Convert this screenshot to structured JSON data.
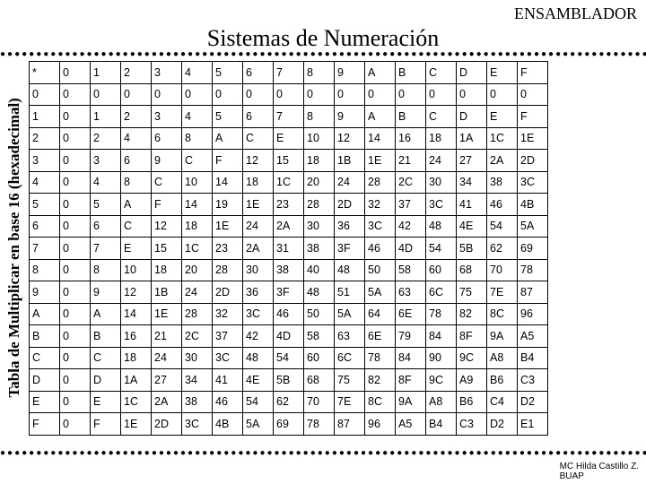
{
  "header": "ENSAMBLADOR",
  "title": "Sistemas de Numeración",
  "vert_label": "Tabla de Multiplicar en base 16 (hexadecimal)",
  "footer_line1": "MC Hilda Castillo Z.",
  "footer_line2": "BUAP",
  "table": {
    "columns": [
      "*",
      "0",
      "1",
      "2",
      "3",
      "4",
      "5",
      "6",
      "7",
      "8",
      "9",
      "A",
      "B",
      "C",
      "D",
      "E",
      "F"
    ],
    "rows": [
      [
        "0",
        "0",
        "0",
        "0",
        "0",
        "0",
        "0",
        "0",
        "0",
        "0",
        "0",
        "0",
        "0",
        "0",
        "0",
        "0",
        "0"
      ],
      [
        "1",
        "0",
        "1",
        "2",
        "3",
        "4",
        "5",
        "6",
        "7",
        "8",
        "9",
        "A",
        "B",
        "C",
        "D",
        "E",
        "F"
      ],
      [
        "2",
        "0",
        "2",
        "4",
        "6",
        "8",
        "A",
        "C",
        "E",
        "10",
        "12",
        "14",
        "16",
        "18",
        "1A",
        "1C",
        "1E"
      ],
      [
        "3",
        "0",
        "3",
        "6",
        "9",
        "C",
        "F",
        "12",
        "15",
        "18",
        "1B",
        "1E",
        "21",
        "24",
        "27",
        "2A",
        "2D"
      ],
      [
        "4",
        "0",
        "4",
        "8",
        "C",
        "10",
        "14",
        "18",
        "1C",
        "20",
        "24",
        "28",
        "2C",
        "30",
        "34",
        "38",
        "3C"
      ],
      [
        "5",
        "0",
        "5",
        "A",
        "F",
        "14",
        "19",
        "1E",
        "23",
        "28",
        "2D",
        "32",
        "37",
        "3C",
        "41",
        "46",
        "4B"
      ],
      [
        "6",
        "0",
        "6",
        "C",
        "12",
        "18",
        "1E",
        "24",
        "2A",
        "30",
        "36",
        "3C",
        "42",
        "48",
        "4E",
        "54",
        "5A"
      ],
      [
        "7",
        "0",
        "7",
        "E",
        "15",
        "1C",
        "23",
        "2A",
        "31",
        "38",
        "3F",
        "46",
        "4D",
        "54",
        "5B",
        "62",
        "69"
      ],
      [
        "8",
        "0",
        "8",
        "10",
        "18",
        "20",
        "28",
        "30",
        "38",
        "40",
        "48",
        "50",
        "58",
        "60",
        "68",
        "70",
        "78"
      ],
      [
        "9",
        "0",
        "9",
        "12",
        "1B",
        "24",
        "2D",
        "36",
        "3F",
        "48",
        "51",
        "5A",
        "63",
        "6C",
        "75",
        "7E",
        "87"
      ],
      [
        "A",
        "0",
        "A",
        "14",
        "1E",
        "28",
        "32",
        "3C",
        "46",
        "50",
        "5A",
        "64",
        "6E",
        "78",
        "82",
        "8C",
        "96"
      ],
      [
        "B",
        "0",
        "B",
        "16",
        "21",
        "2C",
        "37",
        "42",
        "4D",
        "58",
        "63",
        "6E",
        "79",
        "84",
        "8F",
        "9A",
        "A5"
      ],
      [
        "C",
        "0",
        "C",
        "18",
        "24",
        "30",
        "3C",
        "48",
        "54",
        "60",
        "6C",
        "78",
        "84",
        "90",
        "9C",
        "A8",
        "B4"
      ],
      [
        "D",
        "0",
        "D",
        "1A",
        "27",
        "34",
        "41",
        "4E",
        "5B",
        "68",
        "75",
        "82",
        "8F",
        "9C",
        "A9",
        "B6",
        "C3"
      ],
      [
        "E",
        "0",
        "E",
        "1C",
        "2A",
        "38",
        "46",
        "54",
        "62",
        "70",
        "7E",
        "8C",
        "9A",
        "A8",
        "B6",
        "C4",
        "D2"
      ],
      [
        "F",
        "0",
        "F",
        "1E",
        "2D",
        "3C",
        "4B",
        "5A",
        "69",
        "78",
        "87",
        "96",
        "A5",
        "B4",
        "C3",
        "D2",
        "E1"
      ]
    ]
  }
}
